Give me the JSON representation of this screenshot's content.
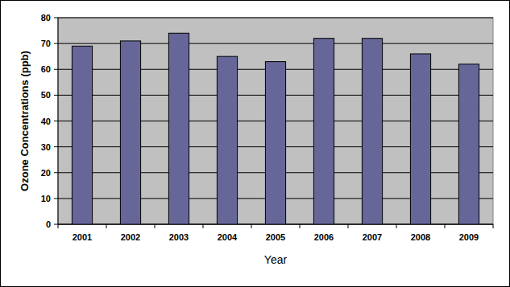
{
  "chart_data": {
    "type": "bar",
    "x_label": "Year",
    "y_label": "Ozone Concentrations (ppb)",
    "categories": [
      "2001",
      "2002",
      "2003",
      "2004",
      "2005",
      "2006",
      "2007",
      "2008",
      "2009"
    ],
    "values": [
      69,
      71,
      74,
      65,
      63,
      72,
      72,
      66,
      62
    ],
    "color": "#666699",
    "ylim": [
      0,
      80
    ],
    "yticks": [
      0,
      10,
      20,
      30,
      40,
      50,
      60,
      70,
      80
    ],
    "grid": true
  }
}
